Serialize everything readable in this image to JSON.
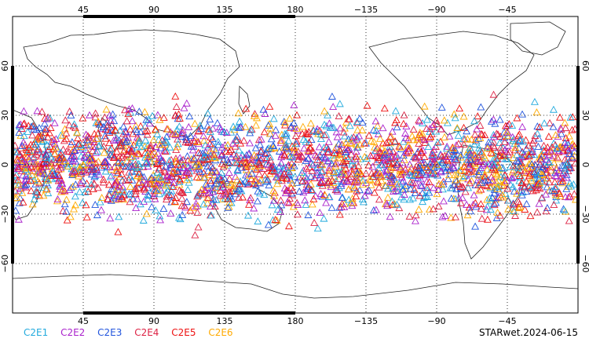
{
  "chart_data": {
    "type": "scatter",
    "projection": "equirectangular, centered at 180",
    "marker": "open triangle",
    "xlim": [
      0,
      360
    ],
    "ylim": [
      -90,
      90
    ],
    "top_ticks": [
      "45",
      "90",
      "135",
      "180",
      "−135",
      "−90",
      "−45"
    ],
    "bottom_ticks": [
      "45",
      "90",
      "135",
      "180",
      "−135",
      "−90",
      "−45"
    ],
    "lon_tick_values": [
      45,
      90,
      135,
      180,
      225,
      270,
      315
    ],
    "left_ticks": [
      "60",
      "30",
      "0",
      "−30",
      "−60"
    ],
    "right_ticks": [
      "60",
      "30",
      "0",
      "−30",
      "−60"
    ],
    "lat_tick_values": [
      60,
      30,
      0,
      -30,
      -60
    ],
    "grid": true,
    "band_lat": [
      -45,
      45
    ],
    "series": [
      {
        "name": "C2E1",
        "color": "#22aadd"
      },
      {
        "name": "C2E2",
        "color": "#aa22cc"
      },
      {
        "name": "C2E3",
        "color": "#2255dd"
      },
      {
        "name": "C2E4",
        "color": "#dd2244"
      },
      {
        "name": "C2E5",
        "color": "#ee1111"
      },
      {
        "name": "C2E6",
        "color": "#ffaa00"
      }
    ]
  },
  "footer": {
    "label": "STARwet.2024-06-15"
  }
}
